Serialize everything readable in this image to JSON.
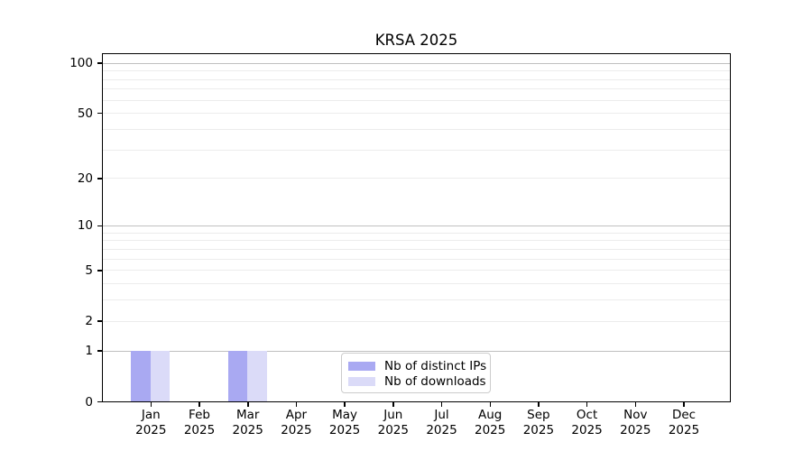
{
  "chart_data": {
    "type": "bar",
    "title": "KRSA 2025",
    "categories": [
      "Jan 2025",
      "Feb 2025",
      "Mar 2025",
      "Apr 2025",
      "May 2025",
      "Jun 2025",
      "Jul 2025",
      "Aug 2025",
      "Sep 2025",
      "Oct 2025",
      "Nov 2025",
      "Dec 2025"
    ],
    "series": [
      {
        "name": "Nb of distinct IPs",
        "color": "#a9a9f2",
        "values": [
          1,
          0,
          1,
          0,
          0,
          0,
          0,
          0,
          0,
          0,
          0,
          0
        ]
      },
      {
        "name": "Nb of downloads",
        "color": "#dbdbf8",
        "values": [
          1,
          0,
          1,
          0,
          0,
          0,
          0,
          0,
          0,
          0,
          0,
          0
        ]
      }
    ],
    "xlabel": "",
    "ylabel": "",
    "yscale": "log1p",
    "yticks": [
      0,
      1,
      2,
      5,
      10,
      20,
      50,
      100
    ],
    "ylim": [
      0,
      115
    ],
    "grid_major": [
      1,
      10,
      100
    ],
    "grid_minor": [
      2,
      3,
      4,
      5,
      6,
      7,
      8,
      9,
      20,
      30,
      40,
      50,
      60,
      70,
      80,
      90
    ],
    "legend": {
      "position": "lower center"
    },
    "colors": {
      "spine": "#000000",
      "grid_major": "#c0c0c0",
      "grid_minor": "#ececec",
      "text": "#000000",
      "legend_border": "#cccccc"
    }
  }
}
